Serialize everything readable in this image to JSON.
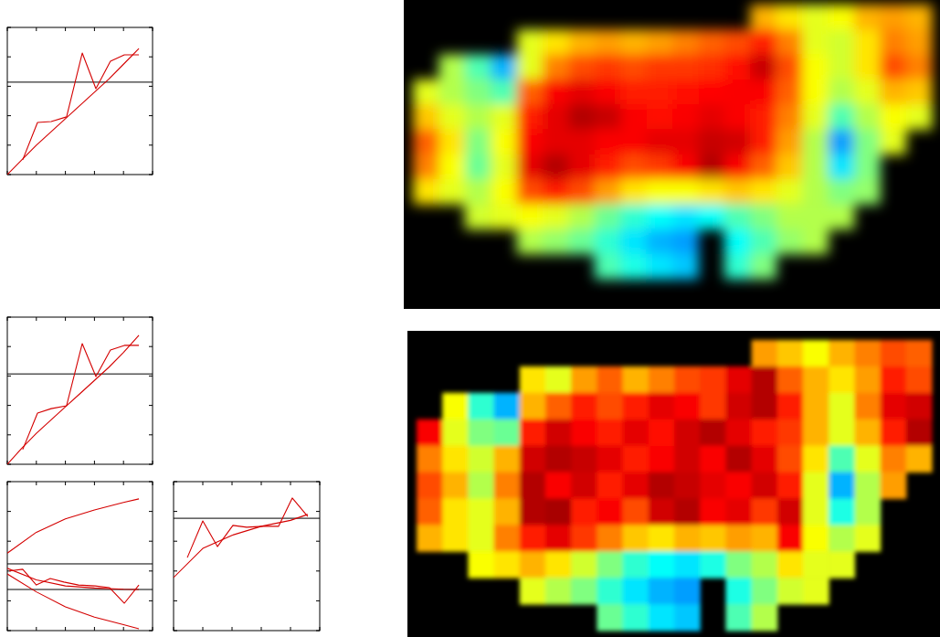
{
  "chart_data": [
    {
      "type": "line",
      "xlim": [
        0,
        5
      ],
      "ylim": [
        0,
        5
      ],
      "xticks": [
        0,
        1,
        2,
        3,
        4,
        5
      ],
      "yticks": [
        0,
        1,
        2,
        3,
        4,
        5
      ],
      "tick_labels": false,
      "hlines": [
        3.14
      ],
      "series": [
        {
          "color": "#d40000",
          "x": [
            0.53,
            1.04,
            1.51,
            2.04,
            2.58,
            3.05,
            3.55,
            4.03,
            4.53
          ],
          "values": [
            0.5,
            1.77,
            1.8,
            1.96,
            4.13,
            2.92,
            3.85,
            4.07,
            4.07
          ]
        },
        {
          "color": "#d40000",
          "x": [
            0,
            0.5,
            1,
            1.5,
            2,
            2.5,
            3,
            3.5,
            4,
            4.53
          ],
          "values": [
            0,
            0.5,
            1.0,
            1.45,
            1.9,
            2.35,
            2.8,
            3.25,
            3.75,
            4.28
          ]
        }
      ]
    },
    {
      "type": "line",
      "xlim": [
        0,
        5
      ],
      "ylim": [
        0,
        5
      ],
      "xticks": [
        0,
        1,
        2,
        3,
        4,
        5
      ],
      "yticks": [
        0,
        1,
        2,
        3,
        4,
        5
      ],
      "tick_labels": false,
      "hlines": [
        3.07
      ],
      "series": [
        {
          "color": "#d40000",
          "x": [
            0.53,
            1.04,
            1.51,
            2.04,
            2.58,
            3.05,
            3.55,
            4.03,
            4.53
          ],
          "values": [
            0.5,
            1.74,
            1.89,
            1.99,
            4.1,
            2.98,
            3.88,
            4.04,
            4.04
          ]
        },
        {
          "color": "#d40000",
          "x": [
            0,
            0.5,
            1,
            1.5,
            2,
            2.5,
            3,
            3.5,
            4,
            4.53
          ],
          "values": [
            0,
            0.55,
            1.05,
            1.5,
            1.95,
            2.4,
            2.85,
            3.3,
            3.8,
            4.38
          ]
        }
      ]
    },
    {
      "type": "line",
      "xlim": [
        0,
        5
      ],
      "ylim": [
        0,
        5
      ],
      "xticks": [
        0,
        1,
        2,
        3,
        4,
        5
      ],
      "yticks": [
        0,
        1,
        2,
        3,
        4,
        5
      ],
      "tick_labels": false,
      "hlines": [
        2.24,
        1.38
      ],
      "series": [
        {
          "color": "#d40000",
          "x": [
            0,
            1,
            2,
            3,
            4,
            4.53
          ],
          "values": [
            2.6,
            3.3,
            3.75,
            4.05,
            4.3,
            4.42
          ]
        },
        {
          "color": "#d40000",
          "x": [
            0,
            1,
            2,
            3,
            4,
            4.53
          ],
          "values": [
            2.09,
            1.7,
            1.5,
            1.43,
            1.39,
            1.38
          ]
        },
        {
          "color": "#d40000",
          "x": [
            0,
            1,
            2,
            3,
            4,
            4.53
          ],
          "values": [
            1.9,
            1.3,
            0.8,
            0.45,
            0.2,
            0.06
          ]
        },
        {
          "color": "#d40000",
          "x": [
            0.06,
            0.53,
            1.0,
            1.48,
            1.95,
            2.45,
            3.02,
            3.52,
            4.03,
            4.53
          ],
          "values": [
            2.0,
            2.06,
            1.53,
            1.75,
            1.63,
            1.53,
            1.5,
            1.44,
            0.92,
            1.53
          ]
        }
      ]
    },
    {
      "type": "line",
      "xlim": [
        0,
        5
      ],
      "ylim": [
        0,
        5
      ],
      "xticks": [
        0,
        1,
        2,
        3,
        4,
        5
      ],
      "yticks": [
        0,
        1,
        2,
        3,
        4,
        5
      ],
      "tick_labels": false,
      "hlines": [
        3.77
      ],
      "series": [
        {
          "color": "#d40000",
          "x": [
            0.47,
            1.0,
            1.5,
            2.03,
            2.5,
            3.06,
            3.59,
            4.06,
            4.59
          ],
          "values": [
            2.45,
            3.68,
            2.82,
            3.53,
            3.47,
            3.5,
            3.5,
            4.45,
            3.83
          ]
        },
        {
          "color": "#d40000",
          "x": [
            0,
            1,
            2,
            3,
            4,
            4.59
          ],
          "values": [
            1.78,
            2.76,
            3.2,
            3.5,
            3.7,
            3.9
          ]
        }
      ]
    },
    {
      "type": "heatmap",
      "tick_labels": false,
      "zlim": [
        0,
        1
      ],
      "cells": [
        [
          null,
          null,
          null,
          null,
          null,
          null,
          null,
          null,
          null,
          null,
          null,
          null,
          null,
          0.7,
          0.65,
          0.6,
          0.62,
          0.7,
          0.72,
          0.7
        ],
        [
          null,
          null,
          null,
          null,
          0.6,
          0.65,
          0.7,
          0.72,
          0.7,
          0.72,
          0.75,
          0.78,
          0.8,
          0.85,
          0.75,
          0.6,
          0.58,
          0.65,
          0.75,
          0.72
        ],
        [
          null,
          0.55,
          0.45,
          0.3,
          0.6,
          0.75,
          0.8,
          0.82,
          0.8,
          0.82,
          0.82,
          0.83,
          0.86,
          0.93,
          0.8,
          0.62,
          0.58,
          0.65,
          0.8,
          0.75
        ],
        [
          0.6,
          0.55,
          0.5,
          0.45,
          0.78,
          0.88,
          0.9,
          0.88,
          0.85,
          0.85,
          0.86,
          0.87,
          0.88,
          0.88,
          0.78,
          0.62,
          0.55,
          0.6,
          0.7,
          0.68
        ],
        [
          0.68,
          0.6,
          0.55,
          0.6,
          0.85,
          0.9,
          0.95,
          0.93,
          0.88,
          0.86,
          0.88,
          0.9,
          0.88,
          0.85,
          0.75,
          0.6,
          0.45,
          0.55,
          0.62,
          0.6
        ],
        [
          0.78,
          0.65,
          0.5,
          0.62,
          0.88,
          0.9,
          0.9,
          0.88,
          0.88,
          0.9,
          0.9,
          0.93,
          0.92,
          0.85,
          0.72,
          0.55,
          0.28,
          0.5,
          0.6,
          null
        ],
        [
          0.75,
          0.62,
          0.48,
          0.6,
          0.9,
          0.95,
          0.9,
          0.85,
          0.8,
          0.82,
          0.88,
          0.95,
          0.88,
          0.78,
          0.68,
          0.55,
          0.35,
          0.5,
          null,
          null
        ],
        [
          0.65,
          0.6,
          0.55,
          0.62,
          0.8,
          0.85,
          0.8,
          0.72,
          0.65,
          0.62,
          0.62,
          0.65,
          0.68,
          0.65,
          0.6,
          0.55,
          0.5,
          0.52,
          null,
          null
        ],
        [
          null,
          null,
          0.58,
          0.6,
          0.62,
          0.6,
          0.55,
          0.48,
          0.42,
          0.38,
          0.35,
          0.38,
          0.45,
          0.5,
          0.55,
          0.55,
          0.55,
          null,
          null,
          null
        ],
        [
          null,
          null,
          null,
          null,
          0.55,
          0.52,
          0.48,
          0.42,
          0.35,
          0.3,
          0.28,
          null,
          0.38,
          0.45,
          0.52,
          0.55,
          null,
          null,
          null,
          null
        ],
        [
          null,
          null,
          null,
          null,
          null,
          null,
          null,
          0.45,
          0.4,
          0.35,
          0.32,
          null,
          0.42,
          0.5,
          null,
          null,
          null,
          null,
          null,
          null
        ]
      ]
    },
    {
      "type": "heatmap",
      "tick_labels": false,
      "zlim": [
        0,
        1
      ],
      "cells": [
        [
          null,
          null,
          null,
          null,
          null,
          null,
          null,
          null,
          null,
          null,
          null,
          null,
          null,
          0.72,
          0.68,
          0.62,
          0.7,
          0.75,
          0.8,
          0.78
        ],
        [
          null,
          null,
          null,
          null,
          0.65,
          0.6,
          0.72,
          0.78,
          0.7,
          0.75,
          0.8,
          0.82,
          0.9,
          0.95,
          0.78,
          0.7,
          0.65,
          0.72,
          0.85,
          0.8
        ],
        [
          null,
          0.62,
          0.42,
          0.3,
          0.7,
          0.78,
          0.85,
          0.8,
          0.85,
          0.9,
          0.88,
          0.82,
          0.92,
          0.95,
          0.85,
          0.7,
          0.6,
          0.75,
          0.9,
          0.92
        ],
        [
          0.88,
          0.6,
          0.5,
          0.48,
          0.85,
          0.92,
          0.88,
          0.85,
          0.9,
          0.86,
          0.92,
          0.95,
          0.9,
          0.85,
          0.82,
          0.7,
          0.6,
          0.7,
          0.85,
          0.95
        ],
        [
          0.75,
          0.65,
          0.58,
          0.7,
          0.92,
          0.95,
          0.93,
          0.9,
          0.85,
          0.88,
          0.92,
          0.88,
          0.95,
          0.9,
          0.8,
          0.65,
          0.45,
          0.6,
          0.75,
          0.7
        ],
        [
          0.8,
          0.7,
          0.55,
          0.75,
          0.95,
          0.88,
          0.92,
          0.85,
          0.9,
          0.95,
          0.93,
          0.9,
          0.88,
          0.92,
          0.85,
          0.6,
          0.3,
          0.55,
          0.72,
          null
        ],
        [
          0.78,
          0.65,
          0.6,
          0.7,
          0.95,
          0.96,
          0.85,
          0.88,
          0.8,
          0.92,
          0.95,
          0.88,
          0.9,
          0.82,
          0.92,
          0.6,
          0.4,
          0.55,
          null,
          null
        ],
        [
          0.7,
          0.65,
          0.6,
          0.75,
          0.85,
          0.9,
          0.82,
          0.75,
          0.68,
          0.65,
          0.7,
          0.68,
          0.72,
          0.7,
          0.88,
          0.62,
          0.55,
          0.6,
          null,
          null
        ],
        [
          null,
          null,
          0.62,
          0.65,
          0.7,
          0.65,
          0.58,
          0.5,
          0.42,
          0.38,
          0.35,
          0.4,
          0.5,
          0.55,
          0.65,
          0.6,
          0.6,
          null,
          null,
          null
        ],
        [
          null,
          null,
          null,
          null,
          0.6,
          0.55,
          0.5,
          0.42,
          0.35,
          0.3,
          0.28,
          null,
          0.4,
          0.5,
          0.58,
          0.6,
          null,
          null,
          null,
          null
        ],
        [
          null,
          null,
          null,
          null,
          null,
          null,
          null,
          0.48,
          0.42,
          0.35,
          0.32,
          null,
          0.45,
          0.55,
          null,
          null,
          null,
          null,
          null,
          null
        ]
      ]
    }
  ]
}
